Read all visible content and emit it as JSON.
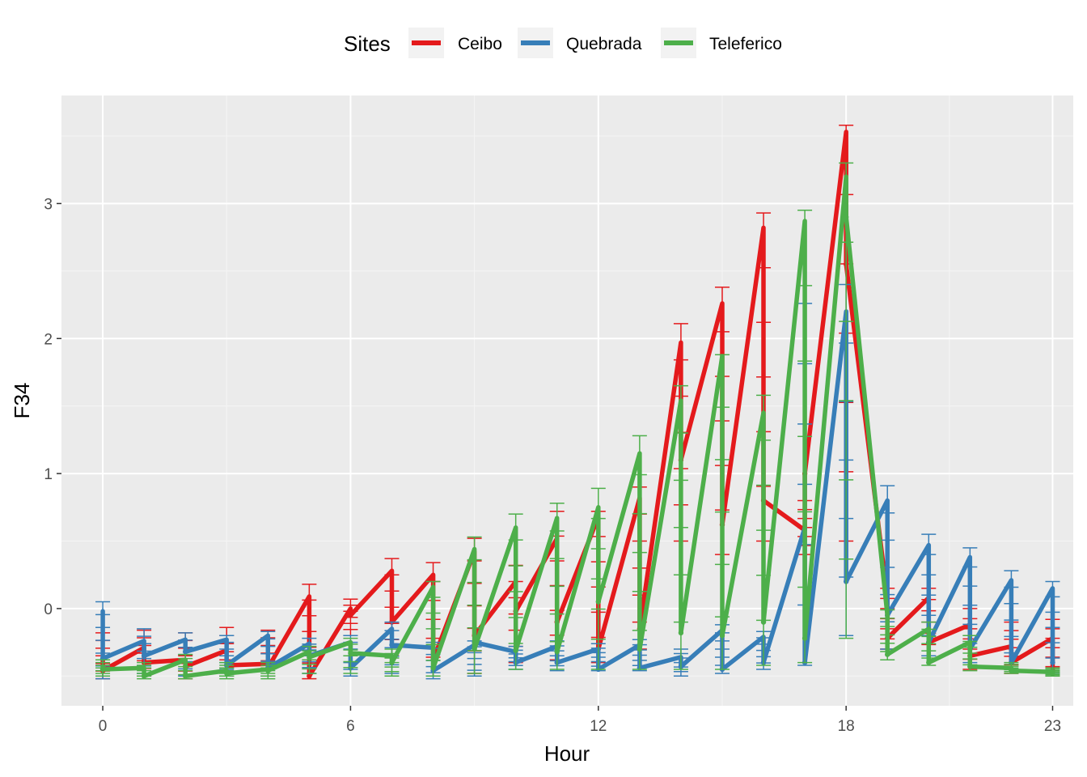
{
  "chart_data": {
    "type": "line",
    "xlabel": "Hour",
    "ylabel": "F34",
    "xlim": [
      -1,
      23.5
    ],
    "ylim": [
      -0.72,
      3.8
    ],
    "x_ticks": [
      0,
      6,
      12,
      18,
      23
    ],
    "y_ticks": [
      0,
      1,
      2,
      3
    ],
    "grid": true,
    "legend": {
      "title": "Sites",
      "position": "top"
    },
    "x": [
      0,
      1,
      2,
      3,
      4,
      5,
      6,
      7,
      8,
      9,
      10,
      11,
      12,
      13,
      14,
      15,
      16,
      17,
      18,
      19,
      20,
      21,
      22,
      23
    ],
    "series": [
      {
        "name": "Ceibo",
        "color": "#E41A1C",
        "peaks": [
          -0.38,
          -0.29,
          -0.38,
          -0.31,
          -0.41,
          0.09,
          0.0,
          0.28,
          0.25,
          0.42,
          0.2,
          0.52,
          0.68,
          0.82,
          1.97,
          2.26,
          2.82,
          0.58,
          3.53,
          0.08,
          0.08,
          -0.12,
          -0.28,
          -0.22
        ],
        "troughs": [
          -0.46,
          -0.4,
          -0.43,
          -0.42,
          -0.44,
          -0.5,
          -0.05,
          -0.1,
          -0.38,
          -0.2,
          -0.02,
          -0.1,
          -0.3,
          -0.15,
          1.1,
          0.62,
          0.8,
          1.0,
          2.55,
          -0.22,
          -0.25,
          -0.35,
          -0.4,
          -0.46
        ],
        "err_hi": [
          -0.18,
          -0.16,
          -0.18,
          -0.14,
          -0.16,
          0.18,
          0.07,
          0.37,
          0.34,
          0.52,
          0.32,
          0.72,
          0.72,
          0.9,
          2.11,
          2.38,
          2.93,
          0.8,
          3.58,
          0.15,
          0.15,
          0.0,
          -0.1,
          -0.08
        ],
        "err_lo": [
          -0.52,
          -0.5,
          -0.52,
          -0.5,
          -0.5,
          -0.52,
          -0.2,
          -0.35,
          -0.5,
          -0.48,
          -0.4,
          -0.38,
          -0.4,
          -0.3,
          0.5,
          0.4,
          0.5,
          0.4,
          0.5,
          -0.3,
          -0.35,
          -0.45,
          -0.48,
          -0.5
        ]
      },
      {
        "name": "Quebrada",
        "color": "#377EB8",
        "peaks": [
          -0.02,
          -0.24,
          -0.23,
          -0.23,
          -0.2,
          -0.26,
          -0.25,
          -0.15,
          -0.29,
          -0.27,
          -0.32,
          -0.28,
          -0.3,
          -0.27,
          -0.36,
          -0.16,
          -0.21,
          0.6,
          2.2,
          0.8,
          0.47,
          0.38,
          0.21,
          0.15
        ],
        "troughs": [
          -0.37,
          -0.35,
          -0.32,
          -0.42,
          -0.44,
          -0.35,
          -0.44,
          -0.27,
          -0.46,
          -0.25,
          -0.4,
          -0.4,
          -0.45,
          -0.44,
          -0.43,
          -0.45,
          -0.4,
          -0.4,
          0.2,
          -0.05,
          -0.25,
          -0.3,
          -0.4,
          -0.4
        ],
        "err_hi": [
          0.05,
          -0.15,
          -0.18,
          -0.2,
          -0.17,
          -0.22,
          -0.2,
          -0.1,
          -0.25,
          -0.24,
          -0.28,
          -0.24,
          -0.26,
          -0.23,
          -0.3,
          -0.12,
          -0.17,
          2.26,
          2.4,
          0.91,
          0.55,
          0.45,
          0.28,
          0.2
        ],
        "err_lo": [
          -0.52,
          -0.48,
          -0.5,
          -0.5,
          -0.5,
          -0.48,
          -0.5,
          -0.48,
          -0.52,
          -0.5,
          -0.45,
          -0.46,
          -0.46,
          -0.46,
          -0.5,
          -0.48,
          -0.45,
          -0.42,
          -0.2,
          -0.3,
          -0.35,
          -0.4,
          -0.45,
          -0.48
        ]
      },
      {
        "name": "Teleferico",
        "color": "#4DAF4A",
        "peaks": [
          -0.43,
          -0.44,
          -0.38,
          -0.46,
          -0.45,
          -0.32,
          -0.25,
          -0.35,
          0.16,
          0.44,
          0.6,
          0.67,
          0.75,
          1.15,
          1.54,
          1.87,
          1.45,
          2.87,
          3.2,
          -0.05,
          -0.15,
          -0.25,
          -0.44,
          -0.47
        ],
        "troughs": [
          -0.45,
          -0.5,
          -0.5,
          -0.48,
          -0.46,
          -0.36,
          -0.33,
          -0.4,
          -0.44,
          -0.3,
          -0.31,
          -0.32,
          0.05,
          -0.3,
          -0.18,
          -0.2,
          -0.1,
          -0.22,
          2.9,
          -0.34,
          -0.4,
          -0.43,
          -0.46,
          -0.48
        ],
        "err_hi": [
          -0.38,
          -0.4,
          -0.34,
          -0.4,
          -0.4,
          -0.28,
          -0.22,
          -0.3,
          0.2,
          0.53,
          0.7,
          0.78,
          0.89,
          1.28,
          1.65,
          1.88,
          1.58,
          2.95,
          3.3,
          -0.01,
          -0.1,
          -0.2,
          -0.4,
          -0.44
        ],
        "err_lo": [
          -0.5,
          -0.52,
          -0.52,
          -0.52,
          -0.52,
          -0.48,
          -0.48,
          -0.5,
          -0.5,
          -0.48,
          -0.45,
          -0.45,
          -0.45,
          -0.45,
          -0.45,
          -0.45,
          -0.42,
          -0.4,
          -0.22,
          -0.38,
          -0.42,
          -0.46,
          -0.48,
          -0.5
        ]
      }
    ]
  }
}
